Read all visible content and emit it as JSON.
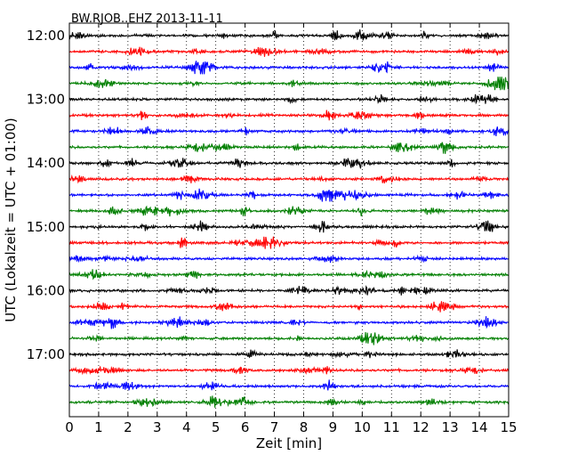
{
  "chart_data": {
    "type": "line",
    "title": "BW.RJOB..EHZ 2013-11-11",
    "xlabel": "Zeit  [min]",
    "ylabel": "UTC (Lokalzeit = UTC + 01:00)",
    "xlim": [
      0,
      15
    ],
    "x_ticks": [
      "0",
      "1",
      "2",
      "3",
      "4",
      "5",
      "6",
      "7",
      "8",
      "9",
      "10",
      "11",
      "12",
      "13",
      "14",
      "15"
    ],
    "y_ticks": [
      "12:00",
      "13:00",
      "14:00",
      "15:00",
      "16:00",
      "17:00"
    ],
    "grid": "vertical dotted at each minute",
    "trace_start_times": [
      "12:00",
      "12:15",
      "12:30",
      "12:45",
      "13:00",
      "13:15",
      "13:30",
      "13:45",
      "14:00",
      "14:15",
      "14:30",
      "14:45",
      "15:00",
      "15:15",
      "15:30",
      "15:45",
      "16:00",
      "16:15",
      "16:30",
      "16:45",
      "17:00",
      "17:15",
      "17:30",
      "17:45"
    ],
    "trace_colors": [
      "#000000",
      "#ff0000",
      "#0000ff",
      "#007f00"
    ]
  }
}
